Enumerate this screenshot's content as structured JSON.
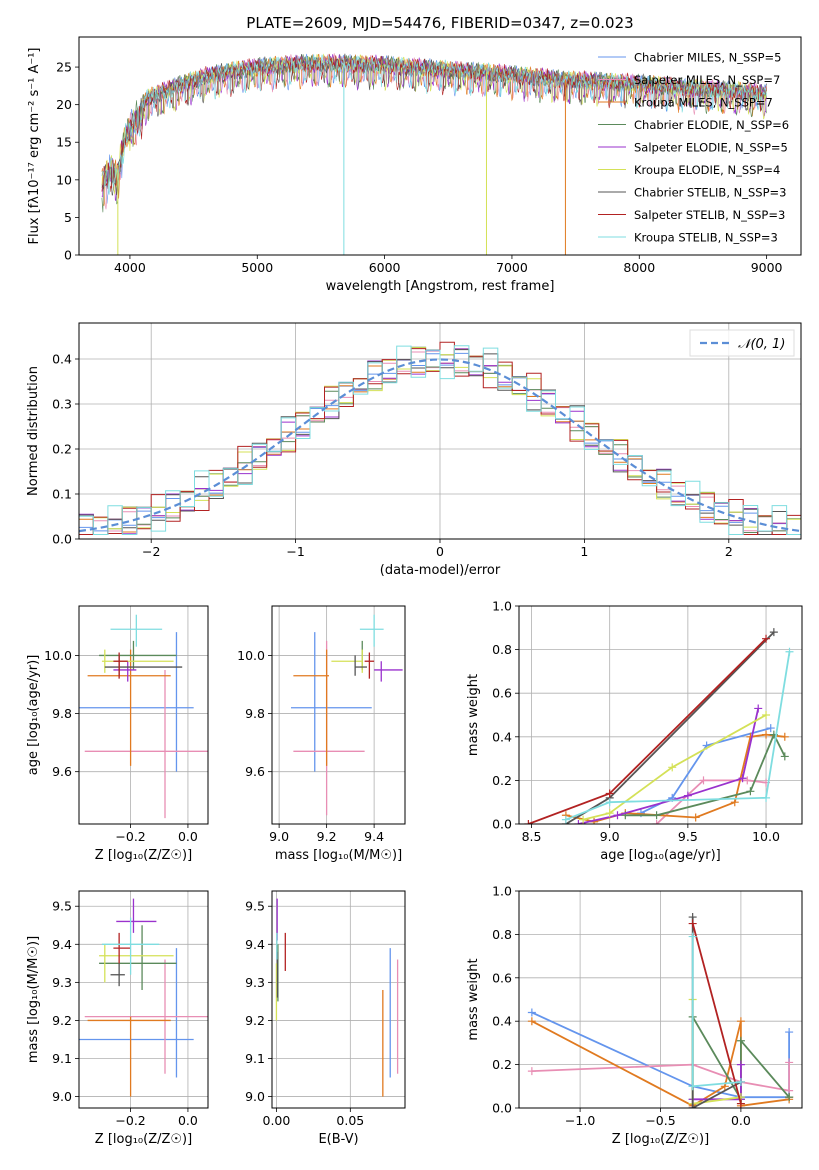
{
  "title": "PLATE=2609, MJD=54476, FIBERID=0347, z=0.023",
  "chart_data": [
    {
      "type": "line",
      "name": "spectrum",
      "title": "PLATE=2609, MJD=54476, FIBERID=0347, z=0.023",
      "xlabel": "wavelength [Angstrom, rest frame]",
      "ylabel": "Flux [fλ10⁻¹⁷ erg cm⁻² s⁻¹ A⁻¹]",
      "xlim": [
        3600,
        9270
      ],
      "ylim": [
        0,
        29
      ],
      "xticks": [
        4000,
        5000,
        6000,
        7000,
        8000,
        9000
      ],
      "yticks": [
        0,
        5,
        10,
        15,
        20,
        25
      ],
      "grid": false,
      "legend_placement": "top-right",
      "continuum": {
        "x": [
          3780,
          3850,
          3900,
          3960,
          4050,
          4150,
          4300,
          4450,
          4600,
          4800,
          5000,
          5200,
          5400,
          5600,
          5800,
          6000,
          6200,
          6400,
          6600,
          6800,
          7000,
          7200,
          7400,
          7600,
          7800,
          8000,
          8200,
          8400,
          8600,
          8800,
          9000
        ],
        "y": [
          11.0,
          13.0,
          11.5,
          17.5,
          19.5,
          21.0,
          22.0,
          23.0,
          23.8,
          24.5,
          25.0,
          25.3,
          25.5,
          25.5,
          25.4,
          25.3,
          25.0,
          24.8,
          24.5,
          24.3,
          24.0,
          23.7,
          23.3,
          23.2,
          23.0,
          22.8,
          22.5,
          22.2,
          22.0,
          21.8,
          21.5
        ]
      },
      "series": [
        {
          "name": "Chabrier MILES, N_SSP=5",
          "color": "#6495ed"
        },
        {
          "name": "Salpeter MILES, N_SSP=7",
          "color": "#e88eb4"
        },
        {
          "name": "Kroupa MILES, N_SSP=7",
          "color": "#e07a20"
        },
        {
          "name": "Chabrier ELODIE, N_SSP=6",
          "color": "#5b8a5b"
        },
        {
          "name": "Salpeter ELODIE, N_SSP=5",
          "color": "#9a32cd"
        },
        {
          "name": "Kroupa ELODIE, N_SSP=4",
          "color": "#d4e157"
        },
        {
          "name": "Chabrier STELIB, N_SSP=3",
          "color": "#555555"
        },
        {
          "name": "Salpeter STELIB, N_SSP=3",
          "color": "#b22222"
        },
        {
          "name": "Kroupa STELIB, N_SSP=3",
          "color": "#7fdde0"
        }
      ],
      "drops": [
        {
          "x": 3905,
          "color": "#d4e157"
        },
        {
          "x": 5680,
          "color": "#7fdde0"
        },
        {
          "x": 6800,
          "color": "#d4e157"
        },
        {
          "x": 7420,
          "color": "#e07a20"
        }
      ]
    },
    {
      "type": "histogram",
      "name": "residuals",
      "xlabel": "(data-model)/error",
      "ylabel": "Normed distribution",
      "xlim": [
        -2.5,
        2.5
      ],
      "ylim": [
        0,
        0.48
      ],
      "xticks": [
        -2,
        -1,
        0,
        1,
        2
      ],
      "yticks": [
        0.0,
        0.1,
        0.2,
        0.3,
        0.4
      ],
      "grid": true,
      "legend_placement": "top-right",
      "legend": "𝒩(0, 1)",
      "bin_width": 0.1,
      "series_colors": [
        "#6495ed",
        "#e88eb4",
        "#e07a20",
        "#5b8a5b",
        "#9a32cd",
        "#d4e157",
        "#555555",
        "#b22222",
        "#7fdde0"
      ],
      "noise": [
        0.01,
        -0.012,
        0.018,
        -0.015,
        0.022,
        -0.02,
        0.03,
        -0.025,
        0.015,
        -0.03,
        0.025,
        -0.01,
        0.035,
        -0.018,
        0.012,
        -0.028,
        0.02,
        -0.008,
        0.028,
        -0.022
      ]
    },
    {
      "type": "scatter",
      "name": "age-vs-metallicity",
      "xlabel": "Z [log₁₀(Z/Z☉)]",
      "ylabel": "age  [log₁₀(age/yr)]",
      "xlim": [
        -0.38,
        0.07
      ],
      "ylim": [
        9.42,
        10.17
      ],
      "xticks": [
        -0.2,
        0.0
      ],
      "yticks": [
        9.6,
        9.8,
        10.0
      ],
      "grid": true,
      "points": [
        {
          "x": -0.04,
          "y": 9.82,
          "xerr": [
            0.34,
            0.06
          ],
          "yerr": [
            0.22,
            0.26
          ],
          "color": "#6495ed"
        },
        {
          "x": -0.08,
          "y": 9.67,
          "xerr": [
            0.28,
            0.15
          ],
          "yerr": [
            0.23,
            0.28
          ],
          "color": "#e88eb4"
        },
        {
          "x": -0.2,
          "y": 9.93,
          "xerr": [
            0.15,
            0.14
          ],
          "yerr": [
            0.31,
            0.09
          ],
          "color": "#e07a20"
        },
        {
          "x": -0.19,
          "y": 10.0,
          "xerr": [
            0.12,
            0.15
          ],
          "yerr": [
            0.05,
            0.05
          ],
          "color": "#5b8a5b"
        },
        {
          "x": -0.21,
          "y": 9.95,
          "xerr": [
            0.05,
            0.03
          ],
          "yerr": [
            0.04,
            0.03
          ],
          "color": "#9a32cd"
        },
        {
          "x": -0.29,
          "y": 9.98,
          "xerr": [
            0.01,
            0.24
          ],
          "yerr": [
            0.04,
            0.04
          ],
          "color": "#d4e157"
        },
        {
          "x": -0.24,
          "y": 9.96,
          "xerr": [
            0.05,
            0.22
          ],
          "yerr": [
            0.03,
            0.04
          ],
          "color": "#555555"
        },
        {
          "x": -0.24,
          "y": 9.98,
          "xerr": [
            0.02,
            0.03
          ],
          "yerr": [
            0.06,
            0.03
          ],
          "color": "#b22222"
        },
        {
          "x": -0.18,
          "y": 10.09,
          "xerr": [
            0.09,
            0.09
          ],
          "yerr": [
            0.06,
            0.05
          ],
          "color": "#7fdde0"
        }
      ]
    },
    {
      "type": "scatter",
      "name": "age-vs-mass",
      "xlabel": "mass [log₁₀(M/M☉)]",
      "ylabel": "",
      "xlim": [
        8.97,
        9.53
      ],
      "ylim": [
        9.42,
        10.17
      ],
      "xticks": [
        9.0,
        9.2,
        9.4
      ],
      "yticks": [
        9.6,
        9.8,
        10.0
      ],
      "grid": true,
      "points": [
        {
          "x": 9.15,
          "y": 9.82,
          "xerr": [
            0.1,
            0.24
          ],
          "yerr": [
            0.22,
            0.26
          ],
          "color": "#6495ed"
        },
        {
          "x": 9.2,
          "y": 9.67,
          "xerr": [
            0.14,
            0.16
          ],
          "yerr": [
            0.22,
            0.38
          ],
          "color": "#e88eb4"
        },
        {
          "x": 9.2,
          "y": 9.93,
          "xerr": [
            0.14,
            0.01
          ],
          "yerr": [
            0.31,
            0.09
          ],
          "color": "#e07a20"
        },
        {
          "x": 9.35,
          "y": 10.0,
          "xerr": [
            0.0,
            0.0
          ],
          "yerr": [
            0.05,
            0.05
          ],
          "color": "#5b8a5b"
        },
        {
          "x": 9.43,
          "y": 9.95,
          "xerr": [
            0.03,
            0.09
          ],
          "yerr": [
            0.04,
            0.03
          ],
          "color": "#9a32cd"
        },
        {
          "x": 9.35,
          "y": 9.98,
          "xerr": [
            0.13,
            0.0
          ],
          "yerr": [
            0.04,
            0.04
          ],
          "color": "#d4e157"
        },
        {
          "x": 9.32,
          "y": 9.96,
          "xerr": [
            0.0,
            0.05
          ],
          "yerr": [
            0.03,
            0.04
          ],
          "color": "#555555"
        },
        {
          "x": 9.38,
          "y": 9.98,
          "xerr": [
            0.02,
            0.02
          ],
          "yerr": [
            0.06,
            0.03
          ],
          "color": "#b22222"
        },
        {
          "x": 9.4,
          "y": 10.09,
          "xerr": [
            0.06,
            0.04
          ],
          "yerr": [
            0.06,
            0.05
          ],
          "color": "#7fdde0"
        }
      ]
    },
    {
      "type": "line",
      "name": "mass-weight-vs-age",
      "xlabel": "age  [log₁₀(age/yr)]",
      "ylabel": "mass weight",
      "xlim": [
        8.42,
        10.23
      ],
      "ylim": [
        0,
        1.0
      ],
      "xticks": [
        8.5,
        9.0,
        9.5,
        10.0
      ],
      "yticks": [
        0.0,
        0.2,
        0.4,
        0.6,
        0.8,
        1.0
      ],
      "grid": true,
      "series": [
        {
          "color": "#6495ed",
          "x": [
            9.2,
            9.4,
            9.62,
            10.03
          ],
          "y": [
            0.05,
            0.12,
            0.36,
            0.44
          ]
        },
        {
          "color": "#e88eb4",
          "x": [
            9.3,
            9.6,
            9.88,
            10.0
          ],
          "y": [
            0.0,
            0.2,
            0.2,
            0.19
          ]
        },
        {
          "color": "#e07a20",
          "x": [
            8.72,
            8.9,
            9.1,
            9.55,
            9.8,
            9.9,
            10.0,
            10.12
          ],
          "y": [
            0.04,
            0.01,
            0.05,
            0.03,
            0.1,
            0.4,
            0.41,
            0.4
          ]
        },
        {
          "color": "#5b8a5b",
          "x": [
            9.1,
            9.3,
            9.9,
            10.05,
            10.12
          ],
          "y": [
            0.04,
            0.04,
            0.15,
            0.41,
            0.31
          ]
        },
        {
          "color": "#9a32cd",
          "x": [
            8.8,
            9.05,
            9.5,
            9.85,
            9.95
          ],
          "y": [
            0.0,
            0.04,
            0.13,
            0.21,
            0.53
          ]
        },
        {
          "color": "#d4e157",
          "x": [
            8.83,
            9.0,
            9.4,
            10.0
          ],
          "y": [
            0.02,
            0.05,
            0.26,
            0.5
          ]
        },
        {
          "color": "#555555",
          "x": [
            8.72,
            9.0,
            10.05
          ],
          "y": [
            0.0,
            0.12,
            0.88
          ]
        },
        {
          "color": "#b22222",
          "x": [
            8.48,
            9.0,
            10.0
          ],
          "y": [
            0.0,
            0.14,
            0.85
          ]
        },
        {
          "color": "#7fdde0",
          "x": [
            8.72,
            9.0,
            10.0,
            10.15
          ],
          "y": [
            0.02,
            0.1,
            0.12,
            0.79
          ]
        }
      ]
    },
    {
      "type": "scatter",
      "name": "mass-vs-metallicity",
      "xlabel": "Z [log₁₀(Z/Z☉)]",
      "ylabel": "mass [log₁₀(M/M☉)]",
      "xlim": [
        -0.38,
        0.07
      ],
      "ylim": [
        8.97,
        9.54
      ],
      "xticks": [
        -0.2,
        0.0
      ],
      "yticks": [
        9.0,
        9.1,
        9.2,
        9.3,
        9.4,
        9.5
      ],
      "grid": true,
      "points": [
        {
          "x": -0.04,
          "y": 9.15,
          "xerr": [
            0.34,
            0.06
          ],
          "yerr": [
            0.1,
            0.24
          ],
          "color": "#6495ed"
        },
        {
          "x": -0.08,
          "y": 9.21,
          "xerr": [
            0.28,
            0.15
          ],
          "yerr": [
            0.15,
            0.15
          ],
          "color": "#e88eb4"
        },
        {
          "x": -0.2,
          "y": 9.2,
          "xerr": [
            0.15,
            0.14
          ],
          "yerr": [
            0.2,
            0.01
          ],
          "color": "#e07a20"
        },
        {
          "x": -0.16,
          "y": 9.35,
          "xerr": [
            0.15,
            0.12
          ],
          "yerr": [
            0.07,
            0.1
          ],
          "color": "#5b8a5b"
        },
        {
          "x": -0.19,
          "y": 9.46,
          "xerr": [
            0.06,
            0.08
          ],
          "yerr": [
            0.03,
            0.06
          ],
          "color": "#9a32cd"
        },
        {
          "x": -0.29,
          "y": 9.37,
          "xerr": [
            0.02,
            0.24
          ],
          "yerr": [
            0.07,
            0.03
          ],
          "color": "#d4e157"
        },
        {
          "x": -0.24,
          "y": 9.32,
          "xerr": [
            0.03,
            0.02
          ],
          "yerr": [
            0.03,
            0.03
          ],
          "color": "#555555"
        },
        {
          "x": -0.24,
          "y": 9.39,
          "xerr": [
            0.02,
            0.04
          ],
          "yerr": [
            0.04,
            0.04
          ],
          "color": "#b22222"
        },
        {
          "x": -0.2,
          "y": 9.4,
          "xerr": [
            0.1,
            0.1
          ],
          "yerr": [
            0.08,
            0.07
          ],
          "color": "#7fdde0"
        }
      ]
    },
    {
      "type": "scatter",
      "name": "mass-vs-extinction",
      "xlabel": "E(B-V)",
      "ylabel": "",
      "xlim": [
        -0.003,
        0.087
      ],
      "ylim": [
        8.97,
        9.54
      ],
      "xticks": [
        0.0,
        0.05
      ],
      "yticks": [
        9.0,
        9.1,
        9.2,
        9.3,
        9.4,
        9.5
      ],
      "grid": true,
      "points": [
        {
          "x": 0.077,
          "y": 9.15,
          "yerr": [
            0.1,
            0.24
          ],
          "color": "#6495ed"
        },
        {
          "x": 0.082,
          "y": 9.21,
          "yerr": [
            0.15,
            0.15
          ],
          "color": "#e88eb4"
        },
        {
          "x": 0.072,
          "y": 9.2,
          "yerr": [
            0.2,
            0.08
          ],
          "color": "#e07a20"
        },
        {
          "x": 0.001,
          "y": 9.35,
          "yerr": [
            0.1,
            0.05
          ],
          "color": "#5b8a5b"
        },
        {
          "x": 0.0005,
          "y": 9.46,
          "yerr": [
            0.05,
            0.06
          ],
          "color": "#9a32cd"
        },
        {
          "x": 0.0,
          "y": 9.3,
          "yerr": [
            0.1,
            0.05
          ],
          "color": "#d4e157"
        },
        {
          "x": 0.0007,
          "y": 9.32,
          "yerr": [
            0.06,
            0.06
          ],
          "color": "#555555"
        },
        {
          "x": 0.006,
          "y": 9.38,
          "yerr": [
            0.05,
            0.05
          ],
          "color": "#b22222"
        },
        {
          "x": 0.0003,
          "y": 9.4,
          "yerr": [
            0.04,
            0.03
          ],
          "color": "#7fdde0"
        }
      ]
    },
    {
      "type": "line",
      "name": "mass-weight-vs-metallicity",
      "xlabel": "Z [log₁₀(Z/Z☉)]",
      "ylabel": "mass weight",
      "xlim": [
        -1.38,
        0.38
      ],
      "ylim": [
        0,
        1.0
      ],
      "xticks": [
        -1.0,
        -0.5,
        0.0
      ],
      "yticks": [
        0.0,
        0.2,
        0.4,
        0.6,
        0.8,
        1.0
      ],
      "grid": true,
      "series": [
        {
          "color": "#6495ed",
          "x": [
            -1.3,
            -0.3,
            0.0,
            0.3,
            0.3
          ],
          "y": [
            0.44,
            0.1,
            0.05,
            0.05,
            0.35
          ]
        },
        {
          "color": "#e88eb4",
          "x": [
            -1.3,
            -0.3,
            0.0,
            0.3,
            0.3
          ],
          "y": [
            0.17,
            0.2,
            0.12,
            0.08,
            0.21
          ]
        },
        {
          "color": "#e07a20",
          "x": [
            -1.3,
            -0.3,
            -0.1,
            0.0,
            0.0,
            0.3,
            0.3
          ],
          "y": [
            0.4,
            0.01,
            0.1,
            0.4,
            0.01,
            0.04,
            0.05
          ]
        },
        {
          "color": "#5b8a5b",
          "x": [
            -0.3,
            -0.3,
            0.0,
            0.0,
            0.3
          ],
          "y": [
            0.04,
            0.42,
            0.04,
            0.31,
            0.05
          ]
        },
        {
          "color": "#9a32cd",
          "x": [
            -0.3,
            -0.3,
            0.0,
            0.0
          ],
          "y": [
            0.0,
            0.04,
            0.04,
            0.2
          ]
        },
        {
          "color": "#d4e157",
          "x": [
            -0.3,
            -0.3,
            0.0
          ],
          "y": [
            0.5,
            0.02,
            0.05
          ]
        },
        {
          "color": "#555555",
          "x": [
            -0.3,
            -0.3,
            0.0
          ],
          "y": [
            0.88,
            0.0,
            0.12
          ]
        },
        {
          "color": "#b22222",
          "x": [
            -0.3,
            0.0
          ],
          "y": [
            0.85,
            0.02
          ]
        },
        {
          "color": "#7fdde0",
          "x": [
            -0.3,
            -0.3,
            0.0
          ],
          "y": [
            0.79,
            0.1,
            0.12
          ]
        }
      ]
    }
  ]
}
